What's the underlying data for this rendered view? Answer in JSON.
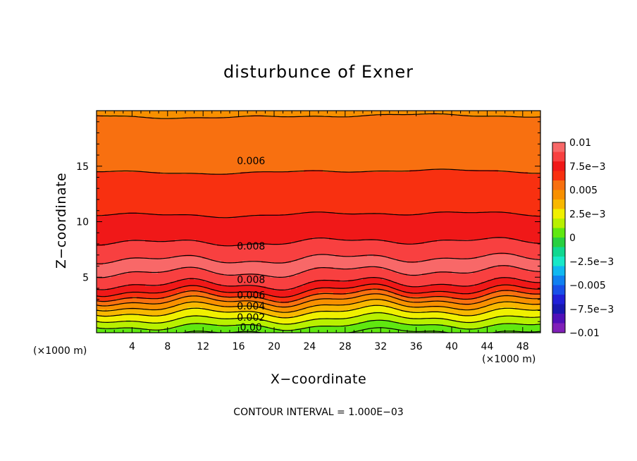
{
  "chart_data": {
    "type": "contour",
    "title": "disturbunce of Exner",
    "xlabel": "X−coordinate",
    "ylabel": "Z−coordinate",
    "x_unit_label": "(×1000 m)",
    "x_unit_label_right": "(×1000 m)",
    "xlim": [
      0,
      50
    ],
    "ylim": [
      0,
      20
    ],
    "xticks": [
      4,
      8,
      12,
      16,
      20,
      24,
      28,
      32,
      36,
      40,
      44,
      48
    ],
    "yticks": [
      5,
      10,
      15
    ],
    "contour_interval_text": "CONTOUR INTERVAL = 1.000E−03",
    "contour_levels": [
      0.0,
      0.001,
      0.002,
      0.003,
      0.004,
      0.005,
      0.006,
      0.007,
      0.008,
      0.009
    ],
    "contour_labels": [
      {
        "text": "0.006",
        "x": 17.4,
        "z": 15.5
      },
      {
        "text": "0.008",
        "x": 17.4,
        "z": 7.8
      },
      {
        "text": "0.008",
        "x": 17.4,
        "z": 4.8
      },
      {
        "text": "0.006",
        "x": 17.4,
        "z": 3.4
      },
      {
        "text": "0.004",
        "x": 17.4,
        "z": 2.4
      },
      {
        "text": "0.002",
        "x": 17.4,
        "z": 1.4
      },
      {
        "text": "0.00",
        "x": 17.4,
        "z": 0.5
      }
    ],
    "profile": {
      "z": [
        0,
        0.5,
        1.0,
        1.5,
        2.0,
        2.5,
        3.0,
        3.5,
        4.0,
        4.5,
        5.0,
        6.0,
        7.0,
        8.0,
        9.0,
        10.0,
        11.0,
        12.0,
        13.0,
        14.0,
        15.0,
        16.0,
        17.0,
        18.0,
        19.0,
        20.0
      ],
      "value": [
        0.0,
        0.0008,
        0.0016,
        0.0024,
        0.0032,
        0.0042,
        0.0052,
        0.0064,
        0.0074,
        0.0081,
        0.0086,
        0.0094,
        0.0088,
        0.0081,
        0.0076,
        0.0072,
        0.0069,
        0.0066,
        0.0064,
        0.0061,
        0.0059,
        0.0057,
        0.0055,
        0.0053,
        0.0051,
        0.0049
      ]
    },
    "colorbar": {
      "labels": [
        "0.01",
        "7.5e−3",
        "0.005",
        "2.5e−3",
        "0",
        "−2.5e−3",
        "−0.005",
        "−7.5e−3",
        "−0.01"
      ],
      "range": [
        -0.01,
        0.01
      ],
      "bands": [
        {
          "min": 0.009,
          "color": "#f86868"
        },
        {
          "min": 0.008,
          "color": "#f84040"
        },
        {
          "min": 0.007,
          "color": "#f01818"
        },
        {
          "min": 0.006,
          "color": "#f83010"
        },
        {
          "min": 0.005,
          "color": "#f87010"
        },
        {
          "min": 0.004,
          "color": "#f89000"
        },
        {
          "min": 0.003,
          "color": "#f8b800"
        },
        {
          "min": 0.002,
          "color": "#f0f000"
        },
        {
          "min": 0.001,
          "color": "#b8f000"
        },
        {
          "min": 0.0,
          "color": "#60e810"
        },
        {
          "min": -0.001,
          "color": "#28d040"
        },
        {
          "min": -0.002,
          "color": "#10d890"
        },
        {
          "min": -0.003,
          "color": "#18e8c8"
        },
        {
          "min": -0.004,
          "color": "#10b8f0"
        },
        {
          "min": -0.005,
          "color": "#1080f0"
        },
        {
          "min": -0.006,
          "color": "#1850e8"
        },
        {
          "min": -0.007,
          "color": "#2020d8"
        },
        {
          "min": -0.008,
          "color": "#1818b0"
        },
        {
          "min": -0.009,
          "color": "#5010b8"
        },
        {
          "min": -0.01,
          "color": "#8020b8"
        }
      ]
    }
  }
}
